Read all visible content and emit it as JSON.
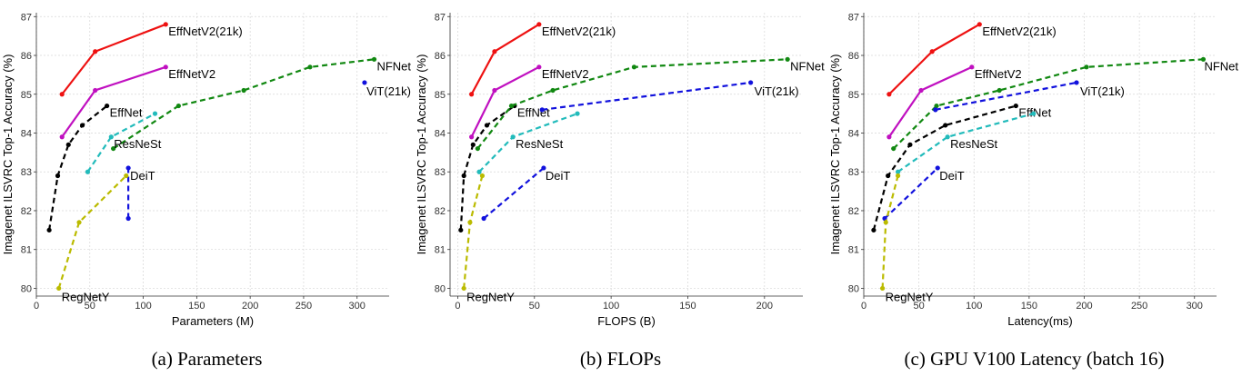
{
  "chart_data": [
    {
      "type": "line",
      "caption": "(a) Parameters",
      "xlabel": "Parameters (M)",
      "ylabel": "Imagenet ILSVRC Top-1 Accuracy (%)",
      "xlim": [
        0,
        330
      ],
      "ylim": [
        79.8,
        87.1
      ],
      "xticks": [
        0,
        50,
        100,
        150,
        200,
        250,
        300
      ],
      "yticks": [
        80,
        81,
        82,
        83,
        84,
        85,
        86,
        87
      ],
      "series": [
        {
          "name": "EffNetV2(21k)",
          "color": "#ee1111",
          "style": "solid",
          "x": [
            24,
            55,
            121
          ],
          "y": [
            85.0,
            86.1,
            86.8
          ],
          "label_at": [
            121,
            86.8
          ]
        },
        {
          "name": "EffNetV2",
          "color": "#c010c0",
          "style": "solid",
          "x": [
            24,
            55,
            121
          ],
          "y": [
            83.9,
            85.1,
            85.7
          ],
          "label_at": [
            121,
            85.7
          ]
        },
        {
          "name": "EffNet",
          "color": "#000000",
          "style": "dashed",
          "x": [
            12,
            20,
            30,
            43,
            66
          ],
          "y": [
            81.5,
            82.9,
            83.7,
            84.2,
            84.7
          ],
          "label_at": [
            66,
            84.7
          ]
        },
        {
          "name": "NFNet",
          "color": "#118811",
          "style": "dashed",
          "x": [
            72,
            133,
            194,
            256,
            316
          ],
          "y": [
            83.6,
            84.7,
            85.1,
            85.7,
            85.9
          ],
          "label_at": [
            316,
            85.9
          ]
        },
        {
          "name": "ResNeSt",
          "color": "#22bbbb",
          "style": "dashed",
          "x": [
            48,
            70,
            111
          ],
          "y": [
            83.0,
            83.9,
            84.5
          ],
          "label_at": [
            70,
            83.9
          ]
        },
        {
          "name": "DeiT",
          "color": "#1111dd",
          "style": "dashed",
          "x": [
            86,
            86
          ],
          "y": [
            81.8,
            83.1
          ],
          "label_at": [
            86,
            83.1
          ]
        },
        {
          "name": "ViT(21k)",
          "color": "#1111dd",
          "style": "dashed",
          "x": [
            307
          ],
          "y": [
            85.3
          ],
          "label_at": [
            307,
            85.3
          ]
        },
        {
          "name": "RegNetY",
          "color": "#bbbb00",
          "style": "dashed",
          "x": [
            21,
            40,
            84
          ],
          "y": [
            80.0,
            81.7,
            82.9
          ],
          "label_at": [
            21,
            80.0
          ]
        }
      ]
    },
    {
      "type": "line",
      "caption": "(b) FLOPs",
      "xlabel": "FLOPS (B)",
      "ylabel": "Imagenet ILSVRC Top-1 Accuracy (%)",
      "xlim": [
        -5,
        225
      ],
      "ylim": [
        79.8,
        87.1
      ],
      "xticks": [
        0,
        50,
        100,
        150,
        200
      ],
      "yticks": [
        80,
        81,
        82,
        83,
        84,
        85,
        86,
        87
      ],
      "series": [
        {
          "name": "EffNetV2(21k)",
          "color": "#ee1111",
          "style": "solid",
          "x": [
            9,
            24,
            53
          ],
          "y": [
            85.0,
            86.1,
            86.8
          ],
          "label_at": [
            53,
            86.8
          ]
        },
        {
          "name": "EffNetV2",
          "color": "#c010c0",
          "style": "solid",
          "x": [
            9,
            24,
            53
          ],
          "y": [
            83.9,
            85.1,
            85.7
          ],
          "label_at": [
            53,
            85.7
          ]
        },
        {
          "name": "EffNet",
          "color": "#000000",
          "style": "dashed",
          "x": [
            2,
            4,
            10,
            19,
            37
          ],
          "y": [
            81.5,
            82.9,
            83.7,
            84.2,
            84.7
          ],
          "label_at": [
            37,
            84.7
          ]
        },
        {
          "name": "NFNet",
          "color": "#118811",
          "style": "dashed",
          "x": [
            13,
            35,
            62,
            115,
            215
          ],
          "y": [
            83.6,
            84.7,
            85.1,
            85.7,
            85.9
          ],
          "label_at": [
            215,
            85.9
          ]
        },
        {
          "name": "ResNeSt",
          "color": "#22bbbb",
          "style": "dashed",
          "x": [
            14,
            36,
            78
          ],
          "y": [
            83.0,
            83.9,
            84.5
          ],
          "label_at": [
            36,
            83.9
          ]
        },
        {
          "name": "DeiT",
          "color": "#1111dd",
          "style": "dashed",
          "x": [
            17,
            56
          ],
          "y": [
            81.8,
            83.1
          ],
          "label_at": [
            56,
            83.1
          ]
        },
        {
          "name": "ViT(21k)",
          "color": "#1111dd",
          "style": "dashed",
          "x": [
            55,
            191
          ],
          "y": [
            84.6,
            85.3
          ],
          "label_at": [
            191,
            85.3
          ]
        },
        {
          "name": "RegNetY",
          "color": "#bbbb00",
          "style": "dashed",
          "x": [
            4,
            8,
            16
          ],
          "y": [
            80.0,
            81.7,
            82.9
          ],
          "label_at": [
            4,
            80.0
          ]
        }
      ]
    },
    {
      "type": "line",
      "caption": "(c) GPU V100 Latency (batch 16)",
      "xlabel": "Latency(ms)",
      "ylabel": "Imagenet ILSVRC Top-1 Accuracy (%)",
      "xlim": [
        0,
        320
      ],
      "ylim": [
        79.8,
        87.1
      ],
      "xticks": [
        0,
        50,
        100,
        150,
        200,
        250,
        300
      ],
      "yticks": [
        80,
        81,
        82,
        83,
        84,
        85,
        86,
        87
      ],
      "series": [
        {
          "name": "EffNetV2(21k)",
          "color": "#ee1111",
          "style": "solid",
          "x": [
            23,
            62,
            105
          ],
          "y": [
            85.0,
            86.1,
            86.8
          ],
          "label_at": [
            105,
            86.8
          ]
        },
        {
          "name": "EffNetV2",
          "color": "#c010c0",
          "style": "solid",
          "x": [
            23,
            52,
            98
          ],
          "y": [
            83.9,
            85.1,
            85.7
          ],
          "label_at": [
            98,
            85.7
          ]
        },
        {
          "name": "EffNet",
          "color": "#000000",
          "style": "dashed",
          "x": [
            9,
            22,
            42,
            74,
            138
          ],
          "y": [
            81.5,
            82.9,
            83.7,
            84.2,
            84.7
          ],
          "label_at": [
            138,
            84.7
          ]
        },
        {
          "name": "NFNet",
          "color": "#118811",
          "style": "dashed",
          "x": [
            27,
            66,
            123,
            202,
            308
          ],
          "y": [
            83.6,
            84.7,
            85.1,
            85.7,
            85.9
          ],
          "label_at": [
            308,
            85.9
          ]
        },
        {
          "name": "ResNeSt",
          "color": "#22bbbb",
          "style": "dashed",
          "x": [
            31,
            76,
            154
          ],
          "y": [
            83.0,
            83.9,
            84.5
          ],
          "label_at": [
            76,
            83.9
          ]
        },
        {
          "name": "DeiT",
          "color": "#1111dd",
          "style": "dashed",
          "x": [
            19,
            67
          ],
          "y": [
            81.8,
            83.1
          ],
          "label_at": [
            67,
            83.1
          ]
        },
        {
          "name": "ViT(21k)",
          "color": "#1111dd",
          "style": "dashed",
          "x": [
            65,
            193
          ],
          "y": [
            84.6,
            85.3
          ],
          "label_at": [
            193,
            85.3
          ]
        },
        {
          "name": "RegNetY",
          "color": "#bbbb00",
          "style": "dashed",
          "x": [
            17,
            20,
            31
          ],
          "y": [
            80.0,
            81.7,
            82.9
          ],
          "label_at": [
            17,
            80.0
          ]
        }
      ]
    }
  ]
}
